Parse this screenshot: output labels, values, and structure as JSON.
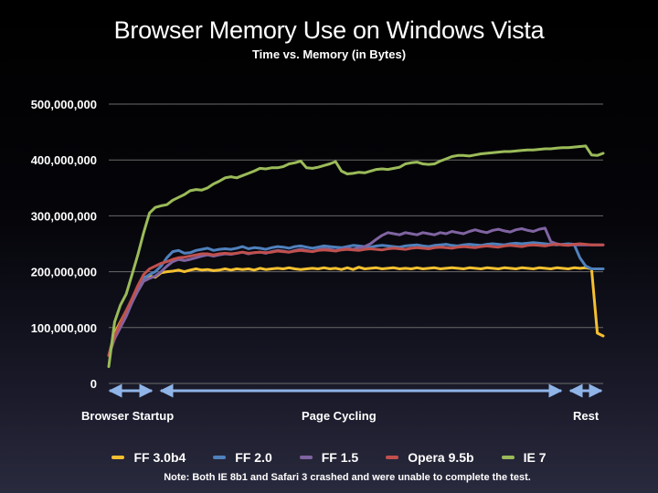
{
  "title": "Browser Memory Use on Windows Vista",
  "subtitle": "Time vs. Memory (in Bytes)",
  "phases": [
    {
      "label": "Browser Startup"
    },
    {
      "label": "Page Cycling"
    },
    {
      "label": "Rest"
    }
  ],
  "note": "Note: Both IE 8b1 and Safari 3 crashed and were unable to complete the test.",
  "chart_data": {
    "type": "line",
    "title": "Browser Memory Use on Windows Vista",
    "subtitle": "Time vs. Memory (in Bytes)",
    "xlabel": "",
    "ylabel": "",
    "ylim": [
      0,
      500000000
    ],
    "yticks": [
      0,
      100000000,
      200000000,
      300000000,
      400000000,
      500000000
    ],
    "ytick_labels": [
      "0",
      "100,000,000",
      "200,000,000",
      "300,000,000",
      "400,000,000",
      "500,000,000"
    ],
    "grid": "horizontal",
    "legend": "bottom",
    "x_count": 86,
    "series": [
      {
        "name": "FF 3.0b4",
        "color": "#f5c030",
        "values": [
          50000000,
          90000000,
          110000000,
          130000000,
          150000000,
          170000000,
          190000000,
          192000000,
          190000000,
          198000000,
          200000000,
          201000000,
          203000000,
          200000000,
          203000000,
          205000000,
          203000000,
          204000000,
          202000000,
          203000000,
          205000000,
          203000000,
          205000000,
          204000000,
          205000000,
          203000000,
          206000000,
          204000000,
          205000000,
          206000000,
          205000000,
          207000000,
          205000000,
          204000000,
          205000000,
          206000000,
          205000000,
          207000000,
          205000000,
          206000000,
          204000000,
          207000000,
          204000000,
          208000000,
          205000000,
          206000000,
          207000000,
          205000000,
          206000000,
          207000000,
          205000000,
          206000000,
          205000000,
          207000000,
          205000000,
          206000000,
          207000000,
          205000000,
          206000000,
          207000000,
          206000000,
          205000000,
          207000000,
          206000000,
          205000000,
          207000000,
          206000000,
          205000000,
          207000000,
          206000000,
          205000000,
          207000000,
          206000000,
          205000000,
          207000000,
          206000000,
          205000000,
          207000000,
          206000000,
          205000000,
          207000000,
          206000000,
          207000000,
          205000000,
          90000000,
          85000000
        ]
      },
      {
        "name": "FF 2.0",
        "color": "#4f81bd",
        "values": [
          50000000,
          85000000,
          105000000,
          125000000,
          145000000,
          170000000,
          188000000,
          195000000,
          200000000,
          210000000,
          225000000,
          236000000,
          238000000,
          233000000,
          234000000,
          238000000,
          240000000,
          242000000,
          238000000,
          240000000,
          241000000,
          240000000,
          242000000,
          245000000,
          241000000,
          243000000,
          242000000,
          240000000,
          243000000,
          245000000,
          244000000,
          242000000,
          245000000,
          246000000,
          244000000,
          242000000,
          244000000,
          246000000,
          245000000,
          244000000,
          243000000,
          245000000,
          247000000,
          246000000,
          245000000,
          244000000,
          246000000,
          247000000,
          246000000,
          245000000,
          244000000,
          246000000,
          247000000,
          248000000,
          246000000,
          245000000,
          247000000,
          248000000,
          249000000,
          247000000,
          246000000,
          248000000,
          249000000,
          248000000,
          247000000,
          249000000,
          250000000,
          249000000,
          248000000,
          250000000,
          251000000,
          250000000,
          251000000,
          252000000,
          251000000,
          250000000,
          249000000,
          248000000,
          249000000,
          250000000,
          249000000,
          225000000,
          210000000,
          205000000,
          205000000,
          205000000
        ]
      },
      {
        "name": "FF 1.5",
        "color": "#8064a2",
        "values": [
          50000000,
          80000000,
          100000000,
          120000000,
          145000000,
          165000000,
          183000000,
          188000000,
          192000000,
          200000000,
          210000000,
          218000000,
          222000000,
          220000000,
          222000000,
          225000000,
          228000000,
          230000000,
          228000000,
          230000000,
          232000000,
          231000000,
          233000000,
          235000000,
          232000000,
          234000000,
          235000000,
          233000000,
          236000000,
          238000000,
          237000000,
          235000000,
          238000000,
          240000000,
          238000000,
          236000000,
          239000000,
          241000000,
          240000000,
          238000000,
          240000000,
          242000000,
          240000000,
          243000000,
          245000000,
          250000000,
          258000000,
          265000000,
          270000000,
          268000000,
          266000000,
          270000000,
          268000000,
          266000000,
          270000000,
          268000000,
          266000000,
          270000000,
          268000000,
          272000000,
          270000000,
          268000000,
          272000000,
          275000000,
          272000000,
          270000000,
          274000000,
          276000000,
          273000000,
          271000000,
          275000000,
          277000000,
          274000000,
          272000000,
          276000000,
          278000000,
          254000000,
          250000000,
          248000000,
          248000000,
          248000000,
          248000000,
          248000000,
          248000000,
          248000000,
          248000000
        ]
      },
      {
        "name": "Opera 9.5b",
        "color": "#c0504d",
        "values": [
          50000000,
          85000000,
          108000000,
          130000000,
          152000000,
          175000000,
          195000000,
          205000000,
          210000000,
          215000000,
          218000000,
          222000000,
          225000000,
          226000000,
          228000000,
          230000000,
          232000000,
          232000000,
          230000000,
          232000000,
          233000000,
          232000000,
          233000000,
          235000000,
          233000000,
          234000000,
          235000000,
          234000000,
          235000000,
          237000000,
          236000000,
          235000000,
          237000000,
          238000000,
          237000000,
          236000000,
          238000000,
          239000000,
          238000000,
          237000000,
          239000000,
          240000000,
          239000000,
          238000000,
          240000000,
          241000000,
          240000000,
          239000000,
          241000000,
          242000000,
          241000000,
          240000000,
          242000000,
          243000000,
          242000000,
          241000000,
          243000000,
          244000000,
          243000000,
          242000000,
          244000000,
          245000000,
          244000000,
          243000000,
          245000000,
          246000000,
          245000000,
          244000000,
          246000000,
          247000000,
          246000000,
          245000000,
          247000000,
          248000000,
          247000000,
          246000000,
          248000000,
          249000000,
          248000000,
          247000000,
          249000000,
          250000000,
          249000000,
          248000000,
          248000000,
          248000000
        ]
      },
      {
        "name": "IE 7",
        "color": "#9bbb59",
        "values": [
          30000000,
          110000000,
          140000000,
          160000000,
          195000000,
          230000000,
          270000000,
          305000000,
          315000000,
          318000000,
          320000000,
          328000000,
          333000000,
          338000000,
          345000000,
          347000000,
          346000000,
          350000000,
          357000000,
          362000000,
          368000000,
          370000000,
          368000000,
          372000000,
          376000000,
          380000000,
          385000000,
          384000000,
          386000000,
          386000000,
          388000000,
          393000000,
          395000000,
          398000000,
          386000000,
          385000000,
          387000000,
          390000000,
          393000000,
          397000000,
          380000000,
          375000000,
          376000000,
          378000000,
          377000000,
          380000000,
          383000000,
          384000000,
          383000000,
          385000000,
          387000000,
          393000000,
          395000000,
          396000000,
          393000000,
          392000000,
          393000000,
          398000000,
          402000000,
          406000000,
          408000000,
          408000000,
          407000000,
          409000000,
          411000000,
          412000000,
          413000000,
          414000000,
          415000000,
          415000000,
          416000000,
          417000000,
          418000000,
          418000000,
          419000000,
          420000000,
          420000000,
          421000000,
          422000000,
          422000000,
          423000000,
          424000000,
          425000000,
          409000000,
          408000000,
          412000000
        ]
      }
    ]
  }
}
